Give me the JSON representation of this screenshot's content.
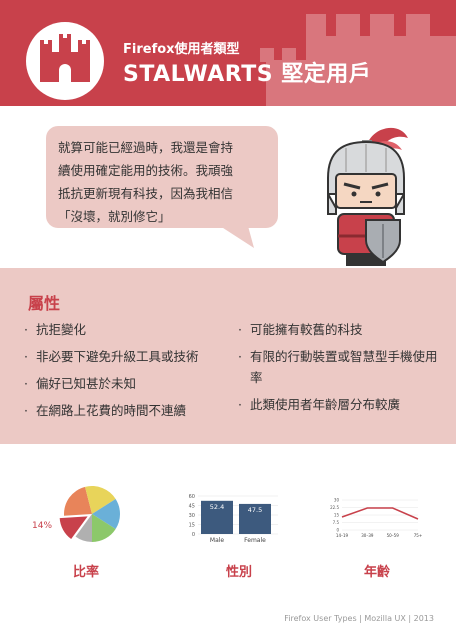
{
  "header": {
    "subtitle": "Firefox使用者類型",
    "title": "STALWARTS 堅定用戶"
  },
  "quote": {
    "lines": [
      "就算可能已經過時，我還是會持",
      "續使用確定能用的技術。我頑強",
      "抵抗更新現有科技，因為我相信",
      "「沒壞，就別修它」"
    ]
  },
  "attributes": {
    "title": "屬性",
    "left": [
      "抗拒變化",
      "非必要下避免升級工具或技術",
      "偏好已知甚於未知",
      "在網路上花費的時間不連續"
    ],
    "right": [
      "可能擁有較舊的科技",
      "有限的行動裝置或智慧型手機使用率",
      "此類使用者年齡層分布較廣"
    ]
  },
  "charts": {
    "ratio": {
      "label": "比率",
      "highlight": "14%",
      "slices": [
        {
          "value": 14,
          "color": "#c8414b"
        },
        {
          "value": 22,
          "color": "#e8845a"
        },
        {
          "value": 20,
          "color": "#e8d45a"
        },
        {
          "value": 18,
          "color": "#6ab0d8"
        },
        {
          "value": 16,
          "color": "#8cc86a"
        },
        {
          "value": 10,
          "color": "#b0b0b0"
        }
      ]
    },
    "gender": {
      "label": "性別",
      "chart_data": {
        "type": "bar",
        "categories": [
          "Male",
          "Female"
        ],
        "values": [
          52.4,
          47.5
        ],
        "value_labels": [
          "52.4",
          "47.5"
        ],
        "yticks": [
          "60",
          "45",
          "30",
          "15",
          "0"
        ],
        "ylim": [
          0,
          60
        ]
      }
    },
    "age": {
      "label": "年齡",
      "chart_data": {
        "type": "line",
        "categories": [
          "14–19",
          "30–39",
          "50–59",
          "75+"
        ],
        "values": [
          13,
          22,
          22,
          11
        ],
        "yticks": [
          "30",
          "22.5",
          "15",
          "7.5",
          "0"
        ],
        "ylim": [
          0,
          30
        ]
      }
    }
  },
  "footer": "Firefox User Types | Mozilla UX | 2013",
  "colors": {
    "brand": "#c8414b",
    "pink": "#ecc9c5",
    "bar": "#3d5a7e"
  }
}
